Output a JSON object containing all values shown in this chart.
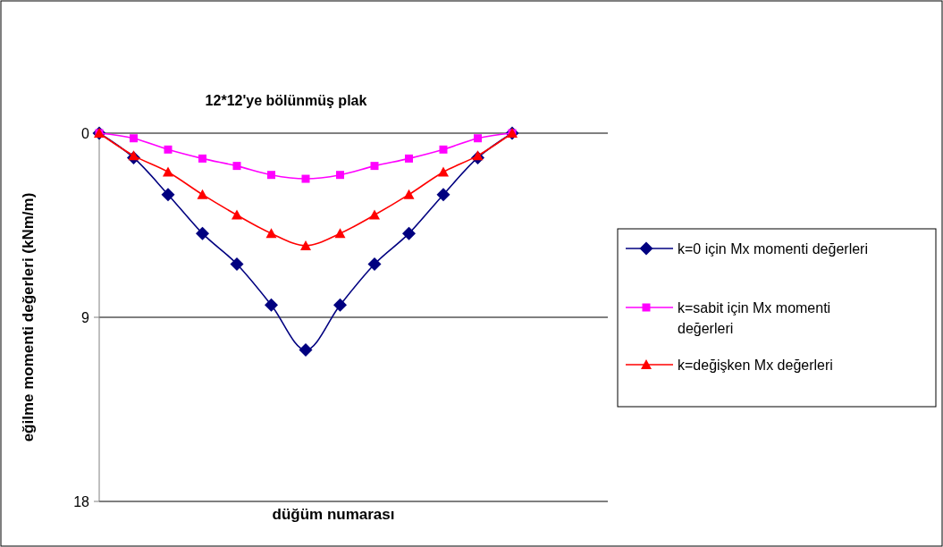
{
  "chart_data": {
    "type": "line",
    "title": "12*12'ye bölünmüş plak",
    "xlabel": "düğüm numarası",
    "ylabel": "eğilme momenti değerleri (kNm/m)",
    "categories": [
      null,
      null,
      null,
      null,
      null,
      null,
      null,
      null,
      null,
      null,
      null,
      null,
      null
    ],
    "series": [
      {
        "name": "k=0 için Mx momenti değerleri",
        "color": "#000080",
        "marker": "diamond",
        "values": [
          0,
          1.2,
          3.0,
          4.9,
          6.4,
          8.4,
          10.6,
          8.4,
          6.4,
          4.9,
          3.0,
          1.2,
          0
        ]
      },
      {
        "name": "k=sabit için Mx momenti değerleri",
        "color": "#ff00ff",
        "marker": "square",
        "values": [
          0,
          0.25,
          0.8,
          1.24,
          1.6,
          2.04,
          2.23,
          2.04,
          1.6,
          1.24,
          0.8,
          0.25,
          0
        ]
      },
      {
        "name": "k=değişken Mx değerleri",
        "color": "#ff0000",
        "marker": "triangle",
        "values": [
          0,
          1.1,
          1.9,
          3.0,
          4.0,
          4.9,
          5.5,
          4.9,
          4.0,
          3.0,
          1.9,
          1.1,
          0
        ]
      }
    ],
    "ylim": [
      18,
      0
    ],
    "yticks": [
      0,
      9,
      18
    ],
    "grid": "y",
    "legend": "right",
    "line_style": "solid"
  }
}
